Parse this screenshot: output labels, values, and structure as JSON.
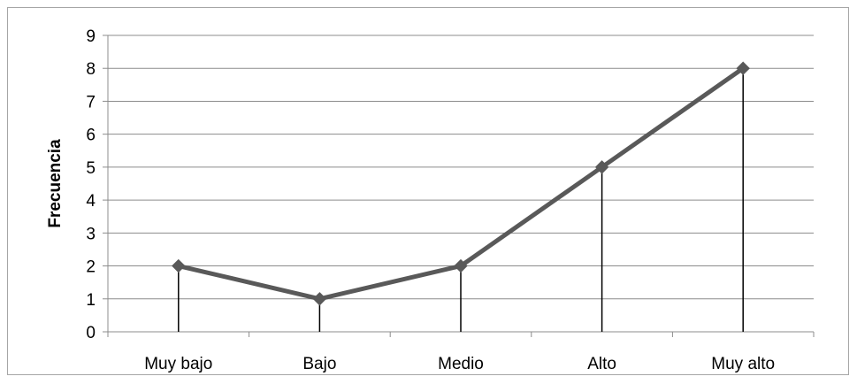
{
  "chart_data": {
    "type": "line",
    "title": "",
    "xlabel": "",
    "ylabel": "Frecuencia",
    "categories": [
      "Muy bajo",
      "Bajo",
      "Medio",
      "Alto",
      "Muy alto"
    ],
    "series": [
      {
        "values": [
          2,
          1,
          2,
          5,
          8
        ]
      }
    ],
    "ylim": [
      0,
      9
    ],
    "yticks": [
      0,
      1,
      2,
      3,
      4,
      5,
      6,
      7,
      8,
      9
    ],
    "grid": true,
    "drop_lines": true,
    "marker": "diamond",
    "line_color": "#595959",
    "marker_color": "#595959",
    "grid_color": "#8c8c8c",
    "drop_line_color": "#000000"
  }
}
